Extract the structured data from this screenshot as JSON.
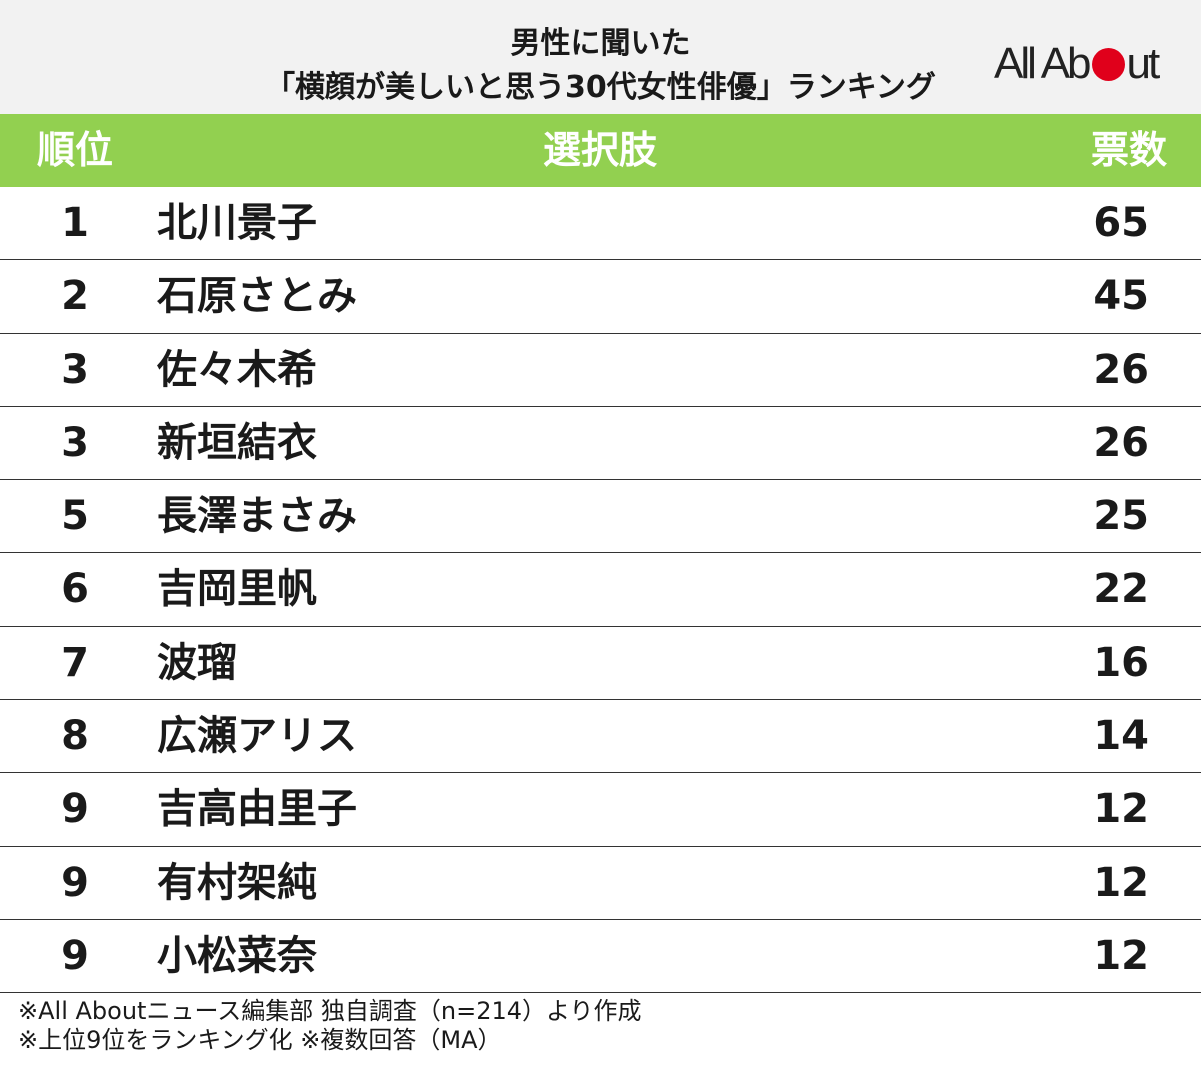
{
  "title": {
    "line1": "男性に聞いた",
    "line2": "「横顔が美しいと思う30代女性俳優」ランキング"
  },
  "logo": {
    "text_before": "All Ab",
    "text_after": "ut",
    "dot_color": "#e0001b"
  },
  "colors": {
    "header_bg": "#92d050",
    "title_bg": "#f2f2f2"
  },
  "chart_data": {
    "type": "table",
    "columns": [
      "順位",
      "選択肢",
      "票数"
    ],
    "rows": [
      {
        "rank": "1",
        "name": "北川景子",
        "votes": "65"
      },
      {
        "rank": "2",
        "name": "石原さとみ",
        "votes": "45"
      },
      {
        "rank": "3",
        "name": "佐々木希",
        "votes": "26"
      },
      {
        "rank": "3",
        "name": "新垣結衣",
        "votes": "26"
      },
      {
        "rank": "5",
        "name": "長澤まさみ",
        "votes": "25"
      },
      {
        "rank": "6",
        "name": "吉岡里帆",
        "votes": "22"
      },
      {
        "rank": "7",
        "name": "波瑠",
        "votes": "16"
      },
      {
        "rank": "8",
        "name": "広瀬アリス",
        "votes": "14"
      },
      {
        "rank": "9",
        "name": "吉高由里子",
        "votes": "12"
      },
      {
        "rank": "9",
        "name": "有村架純",
        "votes": "12"
      },
      {
        "rank": "9",
        "name": "小松菜奈",
        "votes": "12"
      }
    ]
  },
  "notes": [
    "※All Aboutニュース編集部 独自調査（n=214）より作成",
    "※上位9位をランキング化 ※複数回答（MA）"
  ]
}
